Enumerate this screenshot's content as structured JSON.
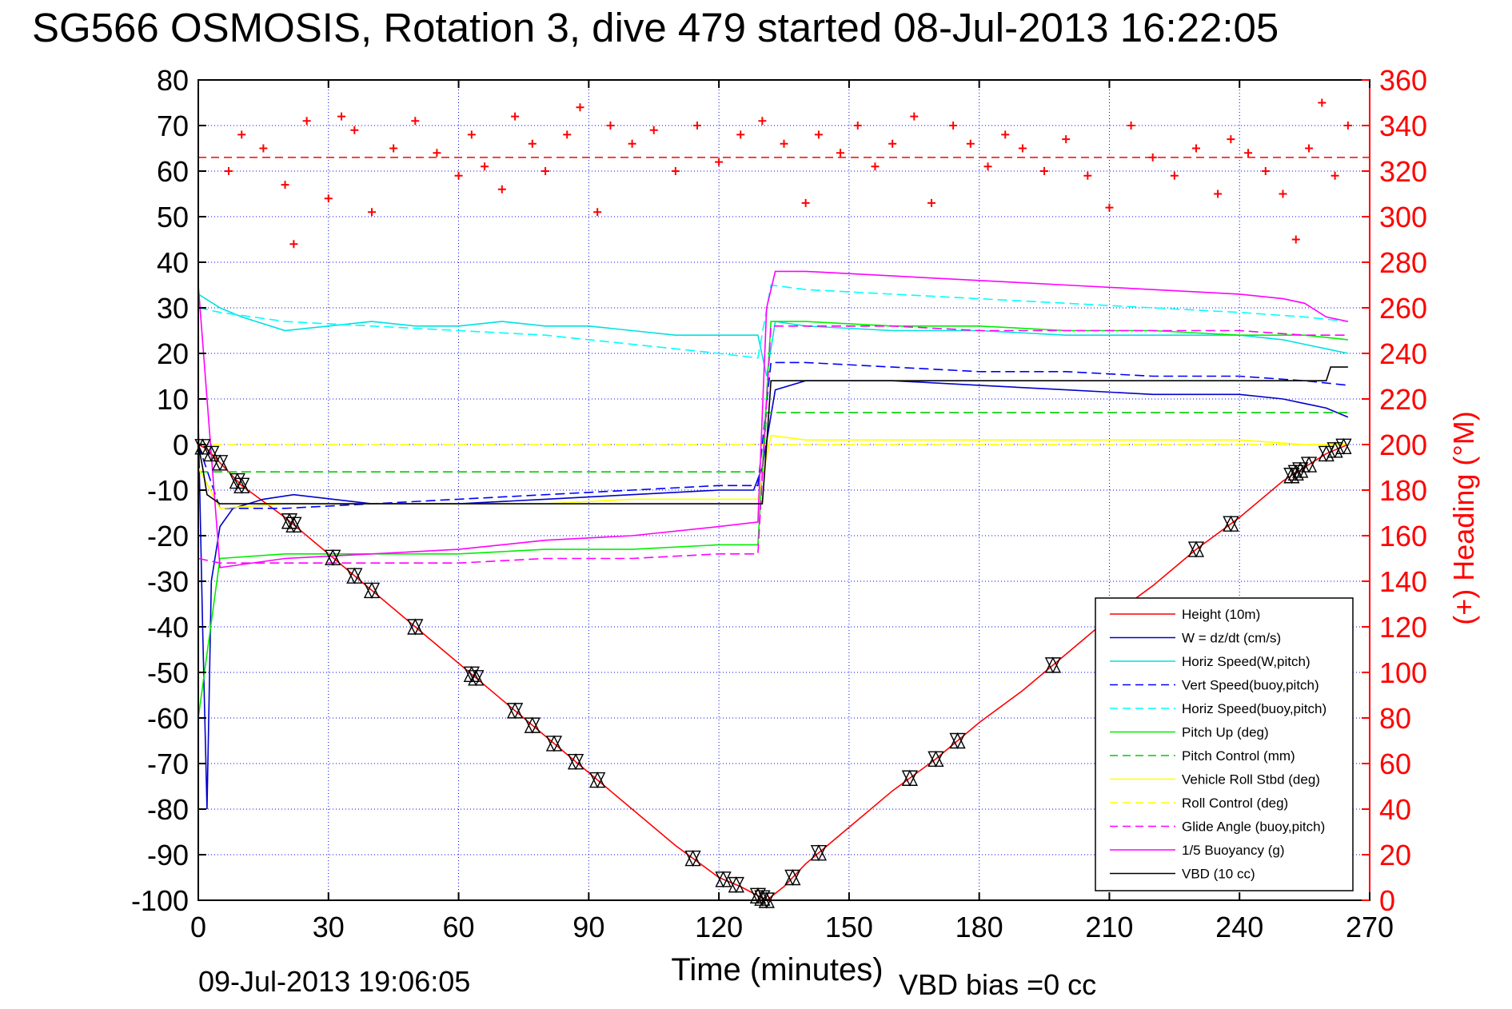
{
  "chart_data": {
    "type": "line",
    "title": "SG566 OSMOSIS, Rotation 3, dive 479 started 08-Jul-2013 16:22:05",
    "xlabel": "Time (minutes)",
    "ylabel": "",
    "y2label": "(+) Heading (°M)",
    "footer_left": "09-Jul-2013 19:06:05",
    "footer_right": "VBD bias =0 cc",
    "xlim": [
      0,
      270
    ],
    "ylim": [
      -100,
      80
    ],
    "y2lim": [
      0,
      360
    ],
    "xticks": [
      "0",
      "30",
      "60",
      "90",
      "120",
      "150",
      "180",
      "210",
      "240",
      "270"
    ],
    "yticks": [
      "80",
      "70",
      "60",
      "50",
      "40",
      "30",
      "20",
      "10",
      "0",
      "-10",
      "-20",
      "-30",
      "-40",
      "-50",
      "-60",
      "-70",
      "-80",
      "-90",
      "-100"
    ],
    "y2ticks": [
      "360",
      "340",
      "320",
      "300",
      "280",
      "260",
      "240",
      "220",
      "200",
      "180",
      "160",
      "140",
      "120",
      "100",
      "80",
      "60",
      "40",
      "20",
      "0"
    ],
    "grid": true,
    "legend_position": "bottom-right",
    "colors": {
      "height": "#ff0000",
      "w": "#0000cc",
      "horiz_w": "#00e0e0",
      "vert_buoy": "#0000ff",
      "horiz_buoy": "#00ffff",
      "pitch": "#00ee00",
      "pitch_control": "#00cc00",
      "roll": "#ffff00",
      "roll_control": "#ffff00",
      "glide": "#ff00ff",
      "buoyancy": "#ff00ff",
      "vbd": "#000000",
      "heading": "#ff0000",
      "right_axis": "#ff0000",
      "grid": "#0000ff"
    },
    "series": [
      {
        "name": "Height (10m)",
        "style": "solid",
        "color": "#ff0000",
        "x": [
          0,
          2,
          5,
          10,
          20,
          30,
          40,
          50,
          60,
          70,
          80,
          90,
          100,
          110,
          120,
          125,
          131,
          135,
          140,
          150,
          160,
          170,
          180,
          190,
          200,
          210,
          220,
          230,
          240,
          250,
          255,
          260,
          265
        ],
        "y": [
          0,
          -1,
          -4,
          -9,
          -16,
          -24,
          -32,
          -40,
          -48,
          -56,
          -64,
          -72,
          -80,
          -88,
          -95,
          -97,
          -100,
          -97,
          -92,
          -84,
          -76,
          -69,
          -61,
          -54,
          -46,
          -38,
          -31,
          -23,
          -16,
          -8,
          -5,
          -2,
          0
        ]
      },
      {
        "name": "W = dz/dt (cm/s)",
        "style": "solid",
        "color": "#0000cc",
        "x": [
          0,
          1,
          2,
          3,
          5,
          8,
          15,
          22,
          40,
          60,
          80,
          100,
          120,
          128,
          130,
          133,
          140,
          160,
          180,
          200,
          220,
          240,
          250,
          255,
          260,
          265
        ],
        "y": [
          5,
          -40,
          -80,
          -30,
          -18,
          -14,
          -12,
          -11,
          -13,
          -13,
          -12,
          -11,
          -10,
          -10,
          -5,
          12,
          14,
          14,
          13,
          12,
          11,
          11,
          10,
          9,
          8,
          6
        ]
      },
      {
        "name": "Horiz Speed(W,pitch)",
        "style": "solid",
        "color": "#00e0e0",
        "x": [
          0,
          5,
          10,
          20,
          30,
          40,
          50,
          60,
          70,
          80,
          90,
          100,
          110,
          120,
          129,
          131,
          133,
          140,
          160,
          180,
          200,
          220,
          240,
          250,
          255,
          260,
          265
        ],
        "y": [
          33,
          30,
          28,
          25,
          26,
          27,
          26,
          26,
          27,
          26,
          26,
          25,
          24,
          24,
          24,
          15,
          27,
          26,
          25,
          25,
          24,
          24,
          24,
          23,
          22,
          21,
          20
        ]
      },
      {
        "name": "Vert Speed(buoy,pitch)",
        "style": "dashed",
        "color": "#0000ff",
        "x": [
          0,
          5,
          20,
          40,
          60,
          80,
          100,
          120,
          129,
          132,
          140,
          160,
          180,
          200,
          220,
          240,
          255,
          265
        ],
        "y": [
          0,
          -14,
          -14,
          -13,
          -12,
          -11,
          -10,
          -9,
          -9,
          18,
          18,
          17,
          16,
          16,
          15,
          15,
          14,
          13
        ]
      },
      {
        "name": "Horiz Speed(buoy,pitch)",
        "style": "dashed",
        "color": "#00ffff",
        "x": [
          0,
          5,
          20,
          40,
          60,
          80,
          100,
          120,
          129,
          132,
          140,
          160,
          180,
          200,
          220,
          240,
          255,
          265
        ],
        "y": [
          30,
          29,
          27,
          26,
          25,
          24,
          22,
          20,
          19,
          35,
          34,
          33,
          32,
          31,
          30,
          29,
          28,
          27
        ]
      },
      {
        "name": "Pitch Up (deg)",
        "style": "solid",
        "color": "#00ee00",
        "x": [
          0,
          5,
          20,
          40,
          60,
          80,
          100,
          120,
          129,
          132,
          140,
          160,
          180,
          200,
          220,
          240,
          255,
          265
        ],
        "y": [
          -60,
          -25,
          -24,
          -24,
          -24,
          -23,
          -23,
          -22,
          -22,
          27,
          27,
          26,
          26,
          25,
          25,
          24,
          24,
          23
        ]
      },
      {
        "name": "Pitch Control (mm)",
        "style": "dashed",
        "color": "#00cc00",
        "x": [
          0,
          5,
          130,
          131,
          265
        ],
        "y": [
          -6,
          -6,
          -6,
          7,
          7
        ]
      },
      {
        "name": "Vehicle Roll Stbd (deg)",
        "style": "solid",
        "color": "#ffff00",
        "x": [
          0,
          5,
          20,
          40,
          60,
          80,
          100,
          120,
          129,
          132,
          140,
          160,
          180,
          200,
          220,
          240,
          255,
          265
        ],
        "y": [
          -5,
          -14,
          -13,
          -13,
          -13,
          -13,
          -12,
          -12,
          -12,
          2,
          1,
          1,
          1,
          1,
          1,
          1,
          0,
          0
        ]
      },
      {
        "name": "Roll Control (deg)",
        "style": "dashed",
        "color": "#ffff00",
        "x": [
          0,
          5,
          130,
          131,
          265
        ],
        "y": [
          0,
          0,
          0,
          0,
          0
        ]
      },
      {
        "name": "Glide Angle (buoy,pitch)",
        "style": "dashed",
        "color": "#ff00ff",
        "x": [
          0,
          5,
          20,
          40,
          60,
          80,
          100,
          120,
          129,
          132,
          140,
          160,
          180,
          200,
          220,
          240,
          255,
          265
        ],
        "y": [
          -25,
          -26,
          -26,
          -26,
          -26,
          -25,
          -25,
          -24,
          -24,
          26,
          26,
          26,
          25,
          25,
          25,
          25,
          24,
          24
        ]
      },
      {
        "name": "1/5 Buoyancy (g)",
        "style": "solid",
        "color": "#ff00ff",
        "x": [
          0,
          5,
          20,
          40,
          60,
          80,
          100,
          120,
          129,
          131,
          133,
          140,
          160,
          180,
          200,
          220,
          240,
          250,
          255,
          260,
          265
        ],
        "y": [
          35,
          -27,
          -25,
          -24,
          -23,
          -21,
          -20,
          -18,
          -17,
          30,
          38,
          38,
          37,
          36,
          35,
          34,
          33,
          32,
          31,
          28,
          27
        ]
      },
      {
        "name": "VBD (10 cc)",
        "style": "solid",
        "color": "#000000",
        "x": [
          0,
          1,
          2,
          5,
          20,
          40,
          60,
          80,
          100,
          120,
          129,
          130,
          131,
          132,
          260,
          261,
          265
        ],
        "y": [
          0,
          -5,
          -11,
          -13,
          -13,
          -13,
          -13,
          -13,
          -13,
          -13,
          -13,
          -13,
          0,
          14,
          14,
          17,
          17
        ]
      }
    ],
    "heading": {
      "axis": "right",
      "marker": "+",
      "color": "#ff0000",
      "mean_line": 326,
      "x": [
        7,
        10,
        15,
        20,
        22,
        25,
        30,
        33,
        36,
        40,
        45,
        50,
        55,
        60,
        63,
        66,
        70,
        73,
        77,
        80,
        85,
        88,
        92,
        95,
        100,
        105,
        110,
        115,
        120,
        125,
        130,
        135,
        140,
        143,
        148,
        152,
        156,
        160,
        165,
        169,
        174,
        178,
        182,
        186,
        190,
        195,
        200,
        205,
        210,
        215,
        220,
        225,
        230,
        235,
        238,
        242,
        246,
        250,
        253,
        256,
        259,
        262,
        265
      ],
      "y": [
        320,
        336,
        330,
        314,
        288,
        342,
        308,
        344,
        338,
        302,
        330,
        342,
        328,
        318,
        336,
        322,
        312,
        344,
        332,
        320,
        336,
        348,
        302,
        340,
        332,
        338,
        320,
        340,
        324,
        336,
        342,
        332,
        306,
        336,
        328,
        340,
        322,
        332,
        344,
        306,
        340,
        332,
        322,
        336,
        330,
        320,
        334,
        318,
        304,
        340,
        326,
        318,
        330,
        310,
        334,
        328,
        320,
        310,
        290,
        330,
        350,
        318,
        340
      ]
    },
    "markers": {
      "symbol": "triangle-x",
      "color": "#000000",
      "x": [
        1,
        3,
        5,
        9,
        10,
        21,
        22,
        31,
        36,
        40,
        50,
        63,
        64,
        73,
        77,
        82,
        87,
        92,
        114,
        121,
        124,
        129,
        130,
        131,
        137,
        143,
        164,
        170,
        175,
        197,
        230,
        238,
        252,
        253,
        254,
        256,
        260,
        262,
        264
      ]
    }
  }
}
